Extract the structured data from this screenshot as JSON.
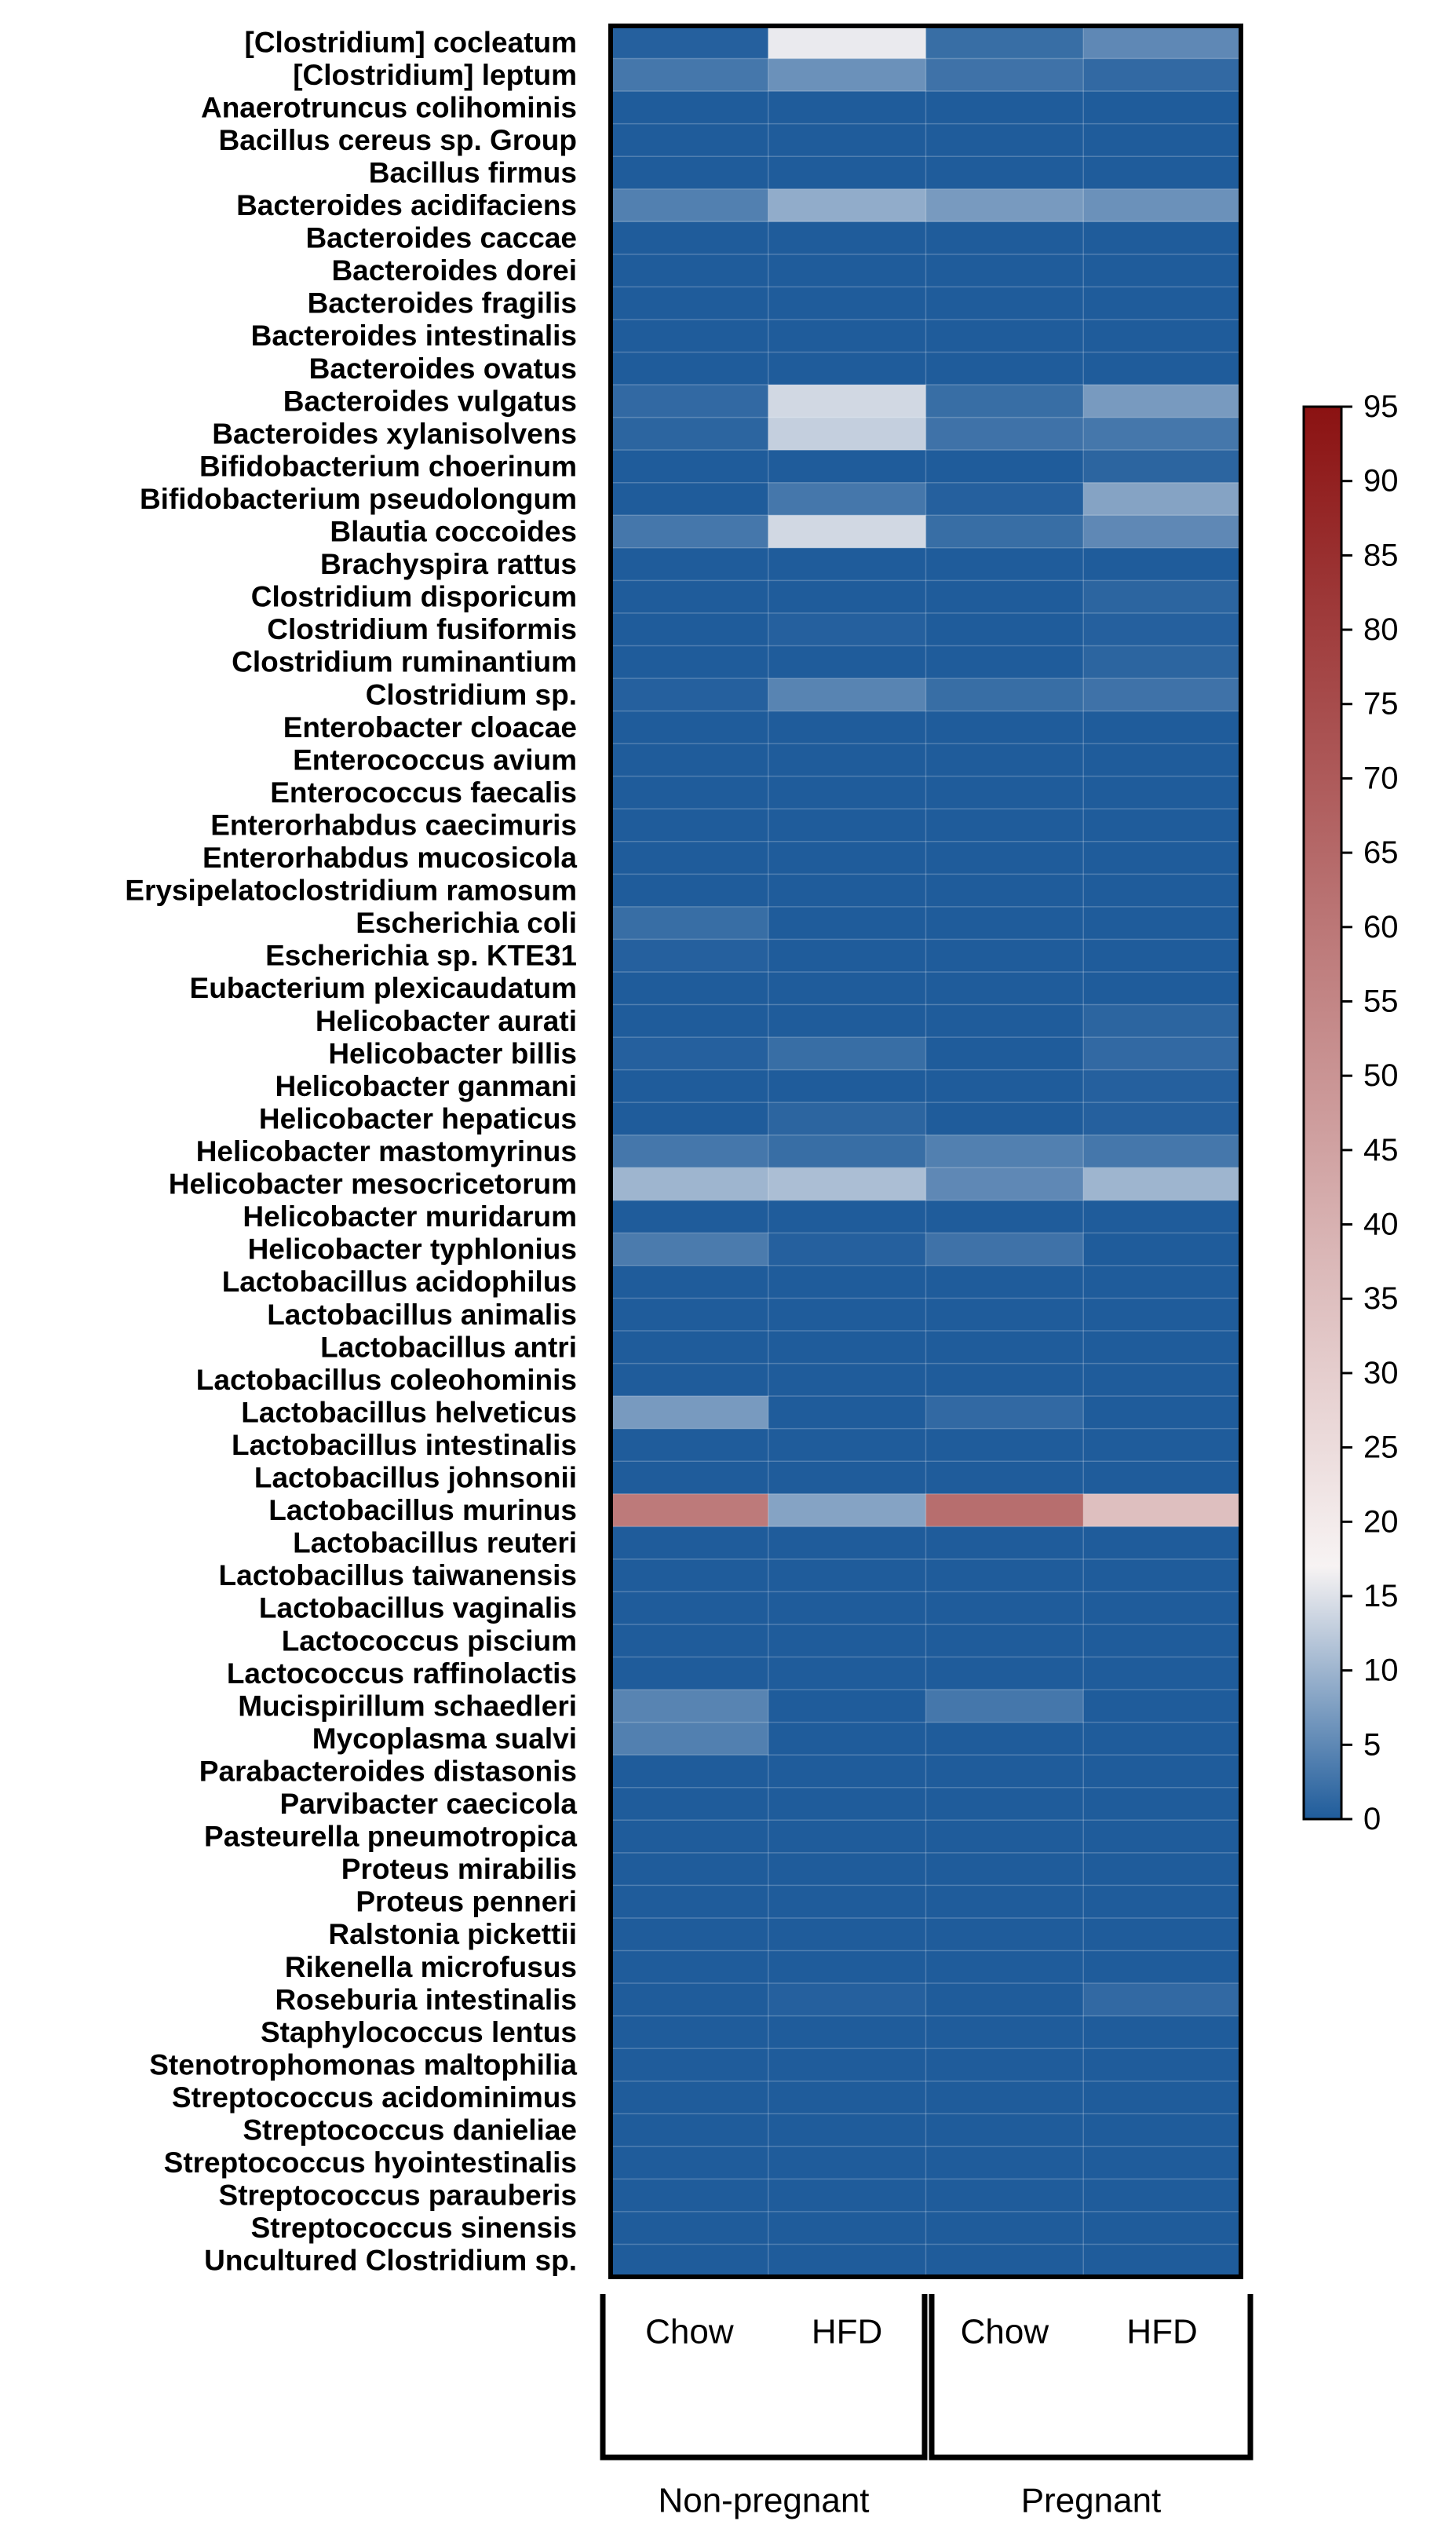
{
  "chart_data": {
    "type": "heatmap",
    "title": "",
    "rows": [
      "[Clostridium] cocleatum",
      "[Clostridium] leptum",
      "Anaerotruncus colihominis",
      "Bacillus cereus sp. Group",
      "Bacillus firmus",
      "Bacteroides acidifaciens",
      "Bacteroides caccae",
      "Bacteroides dorei",
      "Bacteroides fragilis",
      "Bacteroides intestinalis",
      "Bacteroides ovatus",
      "Bacteroides vulgatus",
      "Bacteroides xylanisolvens",
      "Bifidobacterium choerinum",
      "Bifidobacterium pseudolongum",
      "Blautia coccoides",
      "Brachyspira rattus",
      "Clostridium disporicum",
      "Clostridium fusiformis",
      "Clostridium ruminantium",
      "Clostridium sp.",
      "Enterobacter cloacae",
      "Enterococcus avium",
      "Enterococcus faecalis",
      "Enterorhabdus caecimuris",
      "Enterorhabdus mucosicola",
      "Erysipelatoclostridium ramosum",
      "Escherichia coli",
      "Escherichia sp. KTE31",
      "Eubacterium plexicaudatum",
      "Helicobacter aurati",
      "Helicobacter billis",
      "Helicobacter ganmani",
      "Helicobacter hepaticus",
      "Helicobacter mastomyrinus",
      "Helicobacter mesocricetorum",
      "Helicobacter muridarum",
      "Helicobacter typhlonius",
      "Lactobacillus acidophilus",
      "Lactobacillus animalis",
      "Lactobacillus antri",
      "Lactobacillus coleohominis",
      "Lactobacillus helveticus",
      "Lactobacillus intestinalis",
      "Lactobacillus johnsonii",
      "Lactobacillus murinus",
      "Lactobacillus reuteri",
      "Lactobacillus taiwanensis",
      "Lactobacillus vaginalis",
      "Lactococcus piscium",
      "Lactococcus raffinolactis",
      "Mucispirillum schaedleri",
      "Mycoplasma sualvi",
      "Parabacteroides distasonis",
      "Parvibacter caecicola",
      "Pasteurella pneumotropica",
      "Proteus mirabilis",
      "Proteus penneri",
      "Ralstonia pickettii",
      "Rikenella microfusus",
      "Roseburia intestinalis",
      "Staphylococcus lentus",
      "Stenotrophomonas maltophilia",
      "Streptococcus acidominimus",
      "Streptococcus danieliae",
      "Streptococcus hyointestinalis",
      "Streptococcus parauberis",
      "Streptococcus sinensis",
      "Uncultured Clostridium sp."
    ],
    "columns": [
      "Chow",
      "HFD",
      "Chow",
      "HFD"
    ],
    "groups": [
      {
        "label": "Non-pregnant",
        "columns": [
          0,
          1
        ]
      },
      {
        "label": "Pregnant",
        "columns": [
          2,
          3
        ]
      }
    ],
    "values": [
      [
        0.5,
        16,
        2,
        5
      ],
      [
        3,
        6,
        2.5,
        1.5
      ],
      [
        0,
        0,
        0,
        0
      ],
      [
        0,
        0,
        0,
        0
      ],
      [
        0,
        0,
        0,
        0
      ],
      [
        4,
        9,
        7,
        6
      ],
      [
        0,
        0,
        0,
        0
      ],
      [
        0,
        0,
        0,
        0
      ],
      [
        0,
        0,
        0,
        0
      ],
      [
        0,
        0,
        0,
        0
      ],
      [
        0,
        0,
        0,
        0
      ],
      [
        1.5,
        14,
        2,
        7
      ],
      [
        1,
        13,
        2.5,
        3
      ],
      [
        0,
        0,
        0,
        1
      ],
      [
        0,
        3,
        0.5,
        8
      ],
      [
        3,
        14,
        2,
        5
      ],
      [
        0,
        0,
        0,
        0
      ],
      [
        0,
        0,
        0,
        1
      ],
      [
        0,
        0.5,
        0,
        0.5
      ],
      [
        0,
        0,
        0,
        1
      ],
      [
        0.5,
        4.5,
        2,
        2.5
      ],
      [
        0,
        0,
        0,
        0
      ],
      [
        0,
        0,
        0,
        0
      ],
      [
        0,
        0,
        0,
        0
      ],
      [
        0,
        0,
        0,
        0
      ],
      [
        0,
        0,
        0,
        0
      ],
      [
        0,
        0,
        0,
        0
      ],
      [
        2,
        0,
        0,
        0
      ],
      [
        0.5,
        0,
        0,
        0
      ],
      [
        0,
        0,
        0,
        0
      ],
      [
        0,
        0,
        0,
        1
      ],
      [
        0.5,
        2,
        0,
        1.5
      ],
      [
        0,
        0,
        0,
        0.5
      ],
      [
        0,
        1,
        0,
        0.5
      ],
      [
        3,
        2,
        4,
        3
      ],
      [
        10,
        11,
        5,
        10
      ],
      [
        0,
        0,
        0,
        0
      ],
      [
        3.5,
        0.5,
        2.5,
        0
      ],
      [
        0,
        0,
        0,
        0
      ],
      [
        0,
        0,
        0,
        0
      ],
      [
        0,
        0,
        0,
        0
      ],
      [
        0,
        0,
        0,
        0
      ],
      [
        7,
        0,
        1.5,
        0
      ],
      [
        0,
        0,
        0,
        0
      ],
      [
        0,
        0,
        0,
        0
      ],
      [
        59,
        8,
        63,
        35
      ],
      [
        0,
        0,
        0,
        0
      ],
      [
        0,
        0,
        0,
        0
      ],
      [
        0,
        0,
        0,
        0
      ],
      [
        0,
        0,
        0,
        0
      ],
      [
        0,
        0,
        0,
        0
      ],
      [
        4.5,
        0,
        3,
        0
      ],
      [
        4,
        0,
        0,
        0
      ],
      [
        0,
        0,
        0,
        0
      ],
      [
        0,
        0,
        0,
        0
      ],
      [
        0,
        0,
        0,
        0
      ],
      [
        0,
        0,
        0,
        0
      ],
      [
        0,
        0,
        0,
        0
      ],
      [
        0,
        0,
        0,
        0
      ],
      [
        0,
        0,
        0,
        0
      ],
      [
        0,
        0.5,
        0,
        1.5
      ],
      [
        0,
        0,
        0,
        0
      ],
      [
        0,
        0,
        0,
        0
      ],
      [
        0,
        0,
        0,
        0
      ],
      [
        0,
        0,
        0,
        0
      ],
      [
        0,
        0,
        0,
        0
      ],
      [
        0,
        0,
        0,
        0
      ],
      [
        0,
        0,
        0,
        0
      ],
      [
        0,
        0,
        0,
        0
      ]
    ],
    "colorbar": {
      "min": 0,
      "max": 95,
      "ticks": [
        0,
        5,
        10,
        15,
        20,
        25,
        30,
        35,
        40,
        45,
        50,
        55,
        60,
        65,
        70,
        75,
        80,
        85,
        90,
        95
      ],
      "colors": {
        "low": "#1f5c9b",
        "mid": "#f7f3f3",
        "high": "#8b1212",
        "mid_value": 17
      }
    }
  }
}
